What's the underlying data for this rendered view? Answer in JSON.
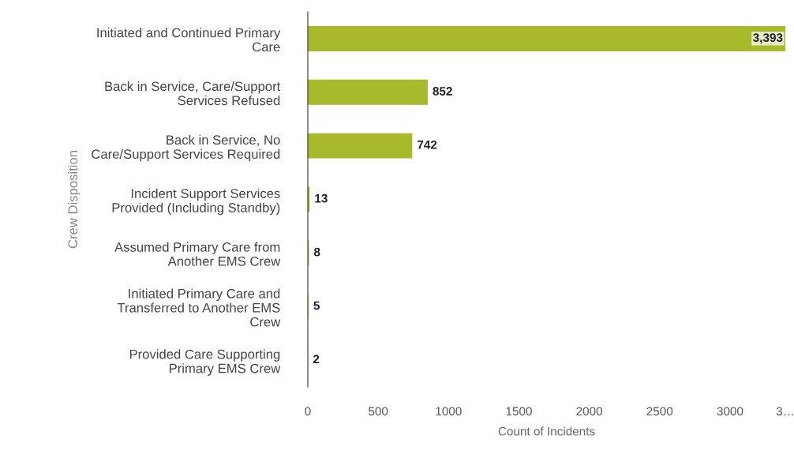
{
  "chart_data": {
    "type": "bar",
    "orientation": "horizontal",
    "xlabel": "Count of Incidents",
    "ylabel": "Crew Disposition",
    "categories": [
      "Initiated and Continued Primary\nCare",
      "Back in Service, Care/Support\nServices Refused",
      "Back in Service, No\nCare/Support Services Required",
      "Incident Support Services\nProvided (Including Standby)",
      "Assumed Primary Care from\nAnother EMS Crew",
      "Initiated Primary Care and\nTransferred to Another EMS\nCrew",
      "Provided Care Supporting\nPrimary EMS Crew"
    ],
    "values": [
      3393,
      852,
      742,
      13,
      8,
      5,
      2
    ],
    "value_labels": [
      "3,393",
      "852",
      "742",
      "13",
      "8",
      "5",
      "2"
    ],
    "color": "#a9b92c",
    "xlim": [
      0,
      3393
    ],
    "xticks": [
      0,
      500,
      1000,
      1500,
      2000,
      2500,
      3000,
      {
        "value": 3393,
        "label": "3…"
      }
    ],
    "grid": false
  }
}
